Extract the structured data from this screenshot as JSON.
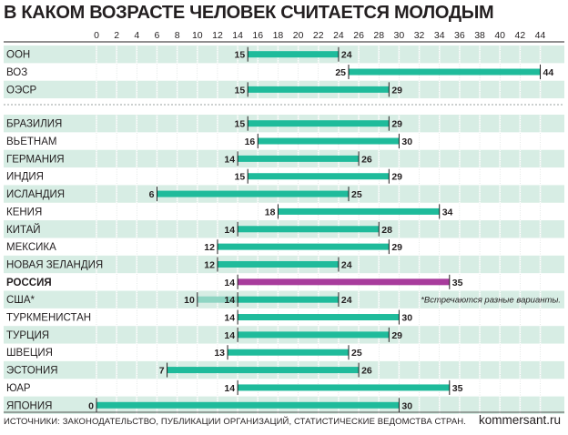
{
  "title": "В КАКОМ ВОЗРАСТЕ ЧЕЛОВЕК СЧИТАЕТСЯ МОЛОДЫМ",
  "footer": {
    "sources": "ИСТОЧНИКИ: ЗАКОНОДАТЕЛЬСТВО, ПУБЛИКАЦИИ ОРГАНИЗАЦИЙ, СТАТИСТИЧЕСКИЕ ВЕДОМСТВА СТРАН.",
    "site": "kommersant.ru"
  },
  "colors": {
    "bar": "#1fbb9b",
    "highlight": "#a83b9c",
    "alt": "#8fd5c3",
    "band": "#d7ede4"
  },
  "chart_data": {
    "type": "bar",
    "orientation": "horizontal-range",
    "title": "В КАКОМ ВОЗРАСТЕ ЧЕЛОВЕК СЧИТАЕТСЯ МОЛОДЫМ",
    "xlim": [
      0,
      46
    ],
    "ticks": [
      0,
      2,
      4,
      6,
      8,
      10,
      12,
      14,
      16,
      18,
      20,
      22,
      24,
      26,
      28,
      30,
      32,
      34,
      36,
      38,
      40,
      42,
      44
    ],
    "groups": [
      {
        "name": "organizations",
        "rows": [
          {
            "label": "ООН",
            "from": 15,
            "to": 24
          },
          {
            "label": "ВОЗ",
            "from": 25,
            "to": 44
          },
          {
            "label": "ОЭСР",
            "from": 15,
            "to": 29
          }
        ]
      },
      {
        "name": "countries",
        "rows": [
          {
            "label": "БРАЗИЛИЯ",
            "from": 15,
            "to": 29
          },
          {
            "label": "ВЬЕТНАМ",
            "from": 16,
            "to": 30
          },
          {
            "label": "ГЕРМАНИЯ",
            "from": 14,
            "to": 26
          },
          {
            "label": "ИНДИЯ",
            "from": 15,
            "to": 29
          },
          {
            "label": "ИСЛАНДИЯ",
            "from": 6,
            "to": 25
          },
          {
            "label": "КЕНИЯ",
            "from": 18,
            "to": 34
          },
          {
            "label": "КИТАЙ",
            "from": 14,
            "to": 28
          },
          {
            "label": "МЕКСИКА",
            "from": 12,
            "to": 29
          },
          {
            "label": "НОВАЯ ЗЕЛАНДИЯ",
            "from": 12,
            "to": 24
          },
          {
            "label": "РОССИЯ",
            "from": 14,
            "to": 35,
            "highlight": true
          },
          {
            "label": "США*",
            "from": 14,
            "to": 24,
            "alt_from": 10,
            "note": "*Встречаются разные варианты."
          },
          {
            "label": "ТУРКМЕНИСТАН",
            "from": 14,
            "to": 30
          },
          {
            "label": "ТУРЦИЯ",
            "from": 14,
            "to": 29
          },
          {
            "label": "ШВЕЦИЯ",
            "from": 13,
            "to": 25
          },
          {
            "label": "ЭСТОНИЯ",
            "from": 7,
            "to": 26
          },
          {
            "label": "ЮАР",
            "from": 14,
            "to": 35
          },
          {
            "label": "ЯПОНИЯ",
            "from": 0,
            "to": 30
          }
        ]
      }
    ]
  }
}
